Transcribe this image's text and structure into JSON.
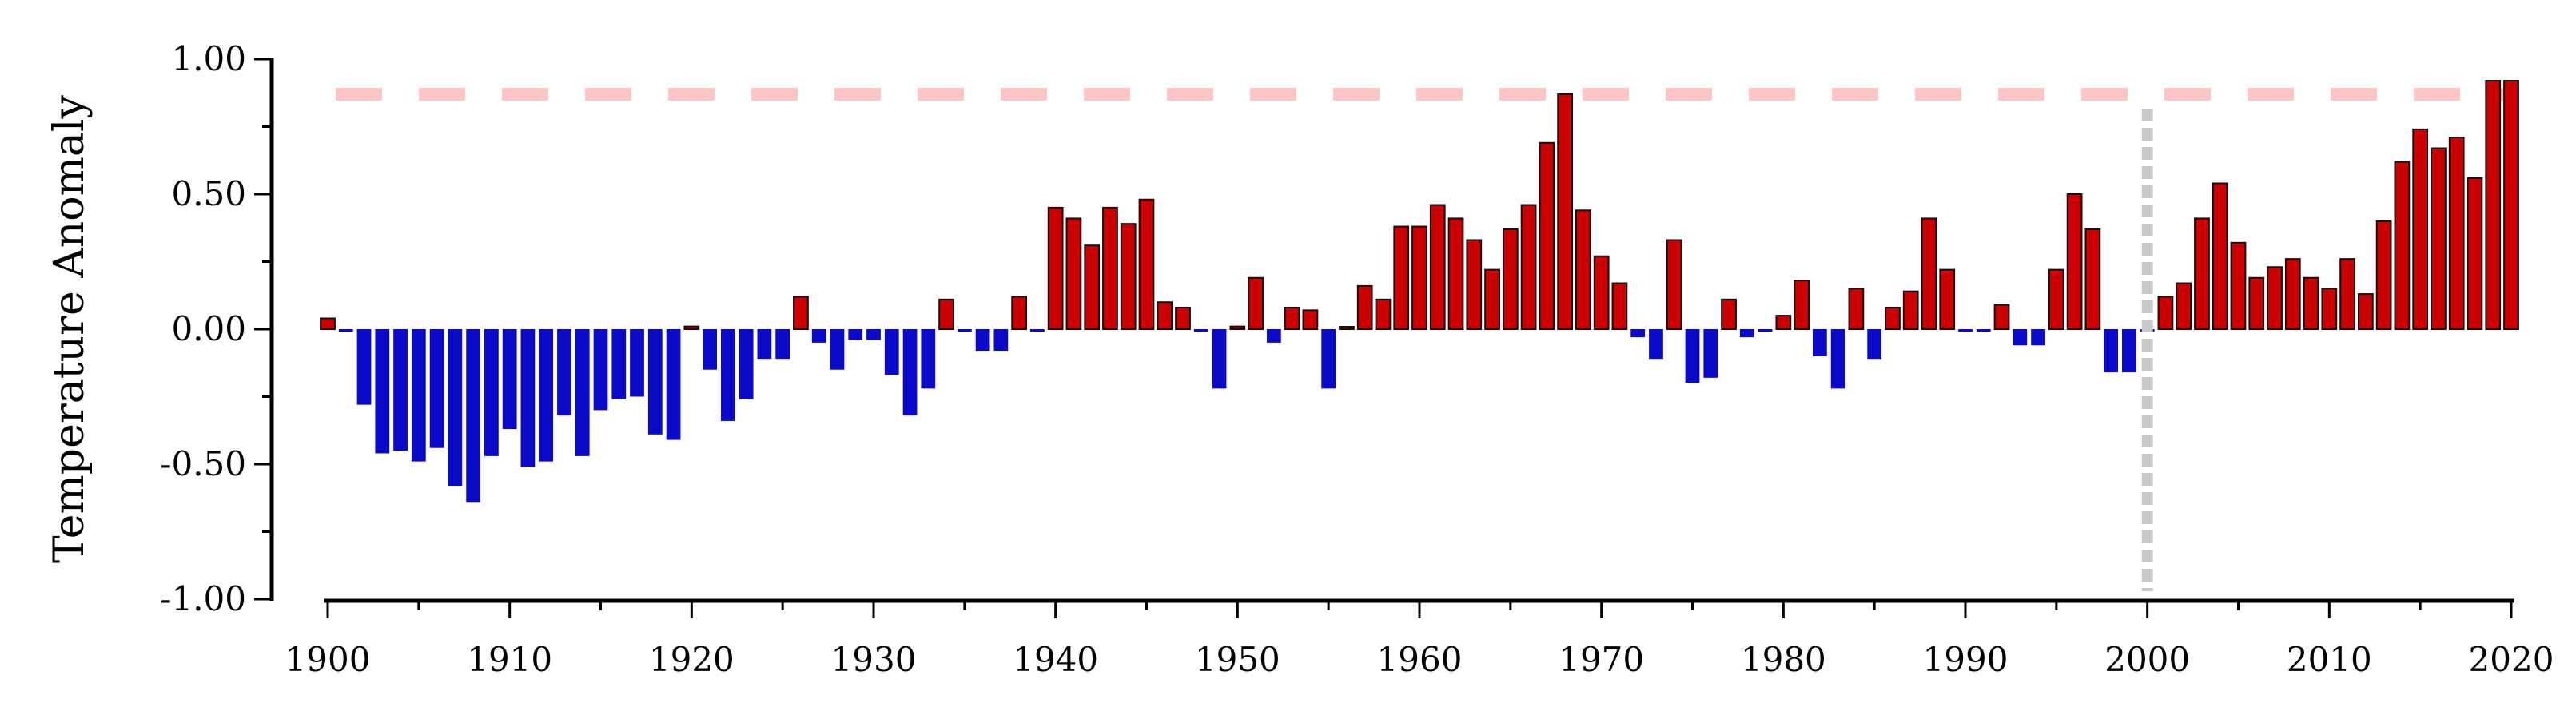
{
  "chart_data": {
    "type": "bar",
    "title": "",
    "xlabel": "",
    "ylabel": "Temperature Anomaly",
    "ylim": [
      -1.0,
      1.0
    ],
    "xlim": [
      1900,
      2020
    ],
    "y_ticks": [
      "1.00",
      "0.50",
      "0.00",
      "-0.50",
      "-1.00"
    ],
    "x_ticks": [
      "1900",
      "1910",
      "1920",
      "1930",
      "1940",
      "1950",
      "1960",
      "1970",
      "1980",
      "1990",
      "2000",
      "2010",
      "2020"
    ],
    "colors": {
      "positive": "#cc0000",
      "negative": "#0a0ac8",
      "threshold_line": "#ffc4c4",
      "reference_line": "#c8c8c8"
    },
    "threshold_line": {
      "y": 0.87,
      "style": "dashed"
    },
    "reference_line": {
      "x": 2000,
      "style": "dotted"
    },
    "years": [
      1900,
      1901,
      1902,
      1903,
      1904,
      1905,
      1906,
      1907,
      1908,
      1909,
      1910,
      1911,
      1912,
      1913,
      1914,
      1915,
      1916,
      1917,
      1918,
      1919,
      1920,
      1921,
      1922,
      1923,
      1924,
      1925,
      1926,
      1927,
      1928,
      1929,
      1930,
      1931,
      1932,
      1933,
      1934,
      1935,
      1936,
      1937,
      1938,
      1939,
      1940,
      1941,
      1942,
      1943,
      1944,
      1945,
      1946,
      1947,
      1948,
      1949,
      1950,
      1951,
      1952,
      1953,
      1954,
      1955,
      1956,
      1957,
      1958,
      1959,
      1960,
      1961,
      1962,
      1963,
      1964,
      1965,
      1966,
      1967,
      1968,
      1969,
      1970,
      1971,
      1972,
      1973,
      1974,
      1975,
      1976,
      1977,
      1978,
      1979,
      1980,
      1981,
      1982,
      1983,
      1984,
      1985,
      1986,
      1987,
      1988,
      1989,
      1990,
      1991,
      1992,
      1993,
      1994,
      1995,
      1996,
      1997,
      1998,
      1999,
      2000,
      2001,
      2002,
      2003,
      2004,
      2005,
      2006,
      2007,
      2008,
      2009,
      2010,
      2011,
      2012,
      2013,
      2014,
      2015,
      2016,
      2017,
      2018,
      2019,
      2020
    ],
    "values": [
      0.04,
      -0.01,
      -0.28,
      -0.46,
      -0.45,
      -0.49,
      -0.44,
      -0.58,
      -0.64,
      -0.47,
      -0.37,
      -0.51,
      -0.49,
      -0.32,
      -0.47,
      -0.3,
      -0.26,
      -0.25,
      -0.39,
      -0.41,
      0.01,
      -0.15,
      -0.34,
      -0.26,
      -0.11,
      -0.11,
      0.12,
      -0.05,
      -0.15,
      -0.04,
      -0.04,
      -0.17,
      -0.32,
      -0.22,
      0.11,
      -0.01,
      -0.08,
      -0.08,
      0.12,
      -0.01,
      0.45,
      0.41,
      0.31,
      0.45,
      0.39,
      0.48,
      0.1,
      0.08,
      -0.01,
      -0.22,
      0.01,
      0.19,
      -0.05,
      0.08,
      0.07,
      -0.22,
      0.0,
      0.16,
      0.11,
      0.38,
      0.38,
      0.46,
      0.41,
      0.33,
      0.22,
      0.37,
      0.46,
      0.69,
      0.87,
      0.44,
      0.27,
      0.17,
      -0.03,
      -0.11,
      0.33,
      -0.2,
      -0.18,
      0.11,
      -0.03,
      -0.01,
      0.05,
      0.18,
      -0.1,
      -0.22,
      0.15,
      -0.11,
      0.08,
      0.14,
      0.41,
      0.22,
      -0.01,
      -0.01,
      0.09,
      -0.06,
      -0.06,
      0.22,
      0.5,
      0.37,
      -0.16,
      -0.16,
      -0.01,
      0.12,
      0.17,
      0.41,
      0.54,
      0.32,
      0.19,
      0.23,
      0.26,
      0.19,
      0.15,
      0.26,
      0.13,
      0.4,
      0.62,
      0.74,
      0.67,
      0.71,
      0.56,
      0.92,
      0.92
    ]
  }
}
